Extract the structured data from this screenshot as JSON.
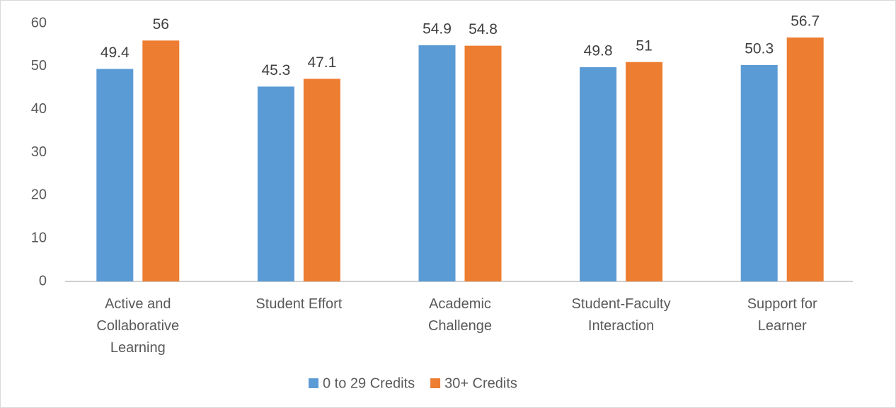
{
  "chart_data": {
    "type": "bar",
    "categories": [
      "Active and Collaborative Learning",
      "Student Effort",
      "Academic Challenge",
      "Student-Faculty Interaction",
      "Support for Learner"
    ],
    "series": [
      {
        "name": "0 to 29 Credits",
        "color": "#5b9bd5",
        "values": [
          49.4,
          45.3,
          54.9,
          49.8,
          50.3
        ]
      },
      {
        "name": "30+ Credits",
        "color": "#ed7d31",
        "values": [
          56,
          47.1,
          54.8,
          51,
          56.7
        ]
      }
    ],
    "ylim": [
      0,
      60
    ],
    "yticks": [
      0,
      10,
      20,
      30,
      40,
      50,
      60
    ],
    "grid": false,
    "legend": "bottom"
  }
}
